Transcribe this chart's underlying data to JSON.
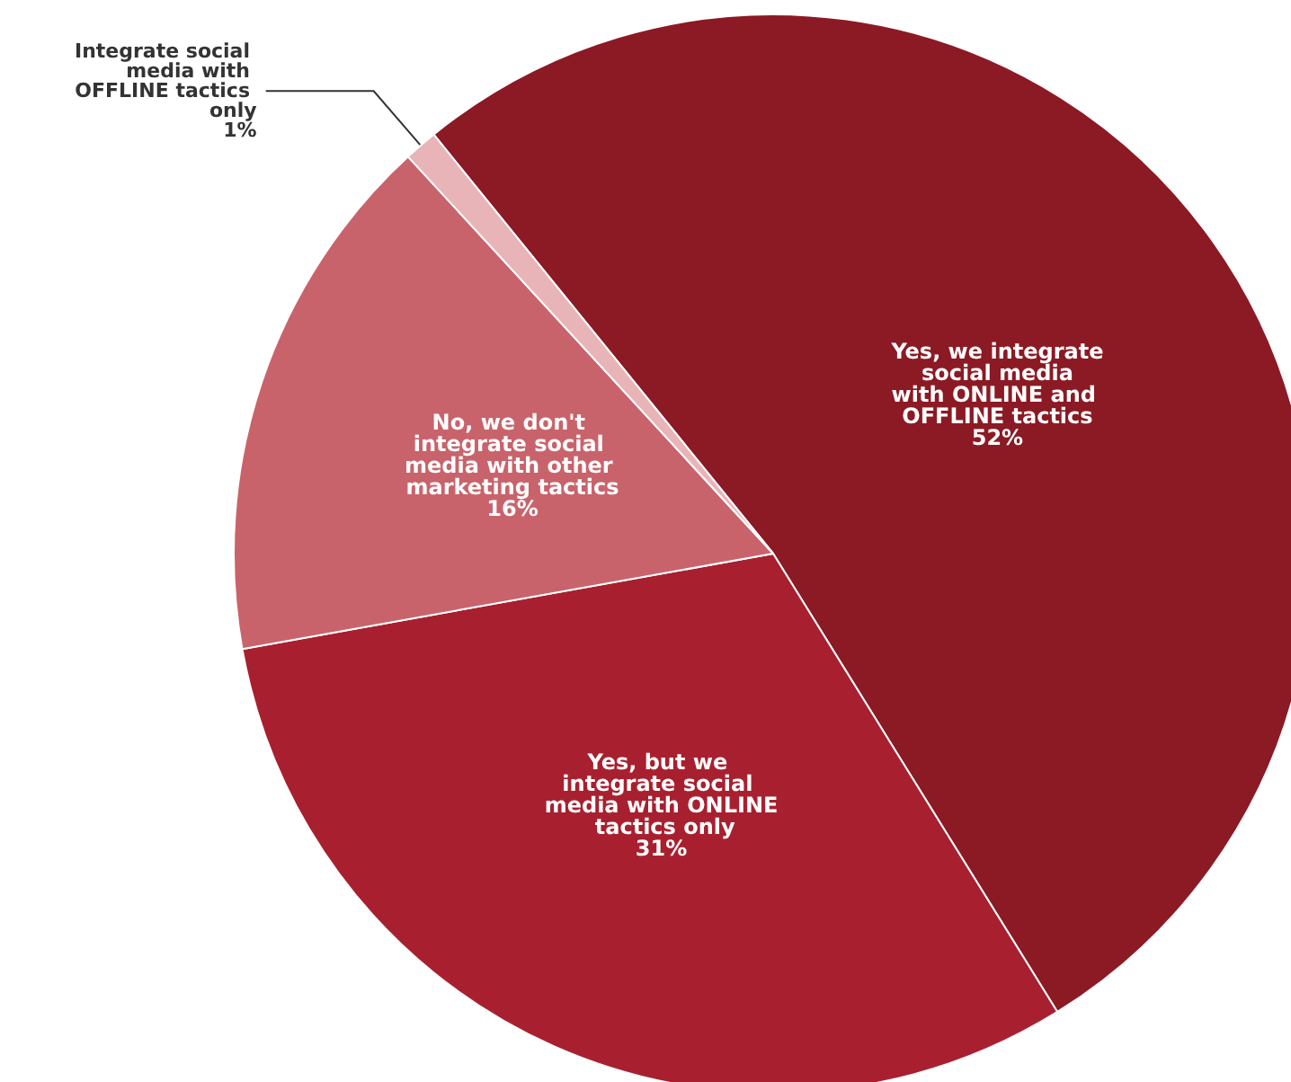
{
  "chart_data": {
    "type": "pie",
    "categories": [
      "Yes, we integrate social media with ONLINE and OFFLINE tactics",
      "Yes, but we integrate social media with ONLINE tactics only",
      "No, we don't integrate social media with other marketing tactics",
      "Integrate social media with OFFLINE tactics only"
    ],
    "values": [
      52,
      31,
      16,
      1
    ],
    "value_labels": [
      "52%",
      "31%",
      "16%",
      "1%"
    ],
    "colors": [
      "#8b1a24",
      "#a8202f",
      "#c9636b",
      "#e8b4b8"
    ],
    "legend": false
  }
}
